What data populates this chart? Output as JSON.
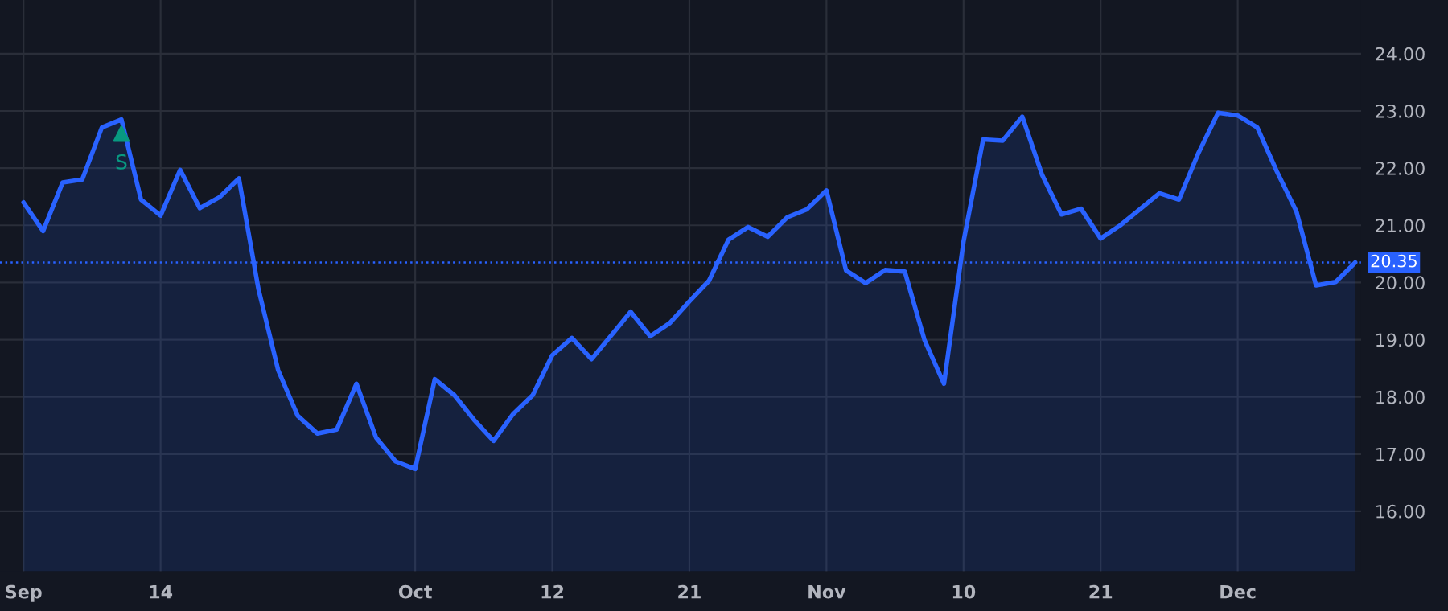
{
  "chart_data": {
    "type": "area",
    "categories": [
      "Sep",
      null,
      null,
      null,
      null,
      null,
      null,
      "14",
      null,
      null,
      null,
      null,
      null,
      null,
      null,
      null,
      null,
      null,
      null,
      null,
      "Oct",
      null,
      null,
      null,
      null,
      null,
      null,
      "12",
      null,
      null,
      null,
      null,
      null,
      null,
      "21",
      null,
      null,
      null,
      null,
      null,
      null,
      "Nov",
      null,
      null,
      null,
      null,
      null,
      null,
      "10",
      null,
      null,
      null,
      null,
      null,
      null,
      "21",
      null,
      null,
      null,
      null,
      null,
      null,
      "Dec",
      null,
      null,
      null,
      null,
      null,
      null
    ],
    "series": [
      {
        "color": "#2962ff",
        "values": [
          21.4,
          20.9,
          21.75,
          21.8,
          22.71,
          22.85,
          21.45,
          21.17,
          21.97,
          21.3,
          21.49,
          21.82,
          19.88,
          18.47,
          17.67,
          17.36,
          17.43,
          18.23,
          17.29,
          16.87,
          16.74,
          18.31,
          18.03,
          17.6,
          17.23,
          17.7,
          18.03,
          18.73,
          19.03,
          18.66,
          19.07,
          19.49,
          19.06,
          19.29,
          19.67,
          20.03,
          20.75,
          20.97,
          20.8,
          21.14,
          21.28,
          21.61,
          20.21,
          19.99,
          20.22,
          20.19,
          19.0,
          18.23,
          20.72,
          22.5,
          22.48,
          22.9,
          21.89,
          21.19,
          21.29,
          20.77,
          21.0,
          21.28,
          21.56,
          21.45,
          22.27,
          22.97,
          22.92,
          22.71,
          21.94,
          21.24,
          19.95,
          20.01,
          20.35
        ]
      },
      {
        "name": "S",
        "type": "scatter",
        "marker": "triangle",
        "color": "#089981",
        "values": [
          null,
          null,
          null,
          null,
          null,
          22.6,
          null,
          null,
          null,
          null,
          null,
          null,
          null,
          null,
          null,
          null,
          null,
          null,
          null,
          null,
          null,
          null,
          null,
          null,
          null,
          null,
          null,
          null,
          null,
          null,
          null,
          null,
          null,
          null,
          null,
          null,
          null,
          null,
          null,
          null,
          null,
          null,
          null,
          null,
          null,
          null,
          null,
          null,
          null,
          null,
          null,
          null,
          null,
          null,
          null,
          null,
          null,
          null,
          null,
          null,
          null,
          null,
          null,
          null,
          null,
          null,
          null,
          null,
          null
        ]
      }
    ],
    "ylim": [
      14.95,
      24.94
    ],
    "yticks": [
      {
        "value": 16,
        "label": "16.00"
      },
      {
        "value": 17,
        "label": "17.00"
      },
      {
        "value": 18,
        "label": "18.00"
      },
      {
        "value": 19,
        "label": "19.00"
      },
      {
        "value": 20,
        "label": "20.00"
      },
      {
        "value": 21,
        "label": "21.00"
      },
      {
        "value": 22,
        "label": "22.00"
      },
      {
        "value": 23,
        "label": "23.00"
      },
      {
        "value": 24,
        "label": "24.00"
      }
    ],
    "ref_lines": [
      {
        "axis": "y",
        "value": 20.35,
        "label": "20.35",
        "color": "#2962ff",
        "line_style": "dotted"
      }
    ],
    "grid": true
  }
}
